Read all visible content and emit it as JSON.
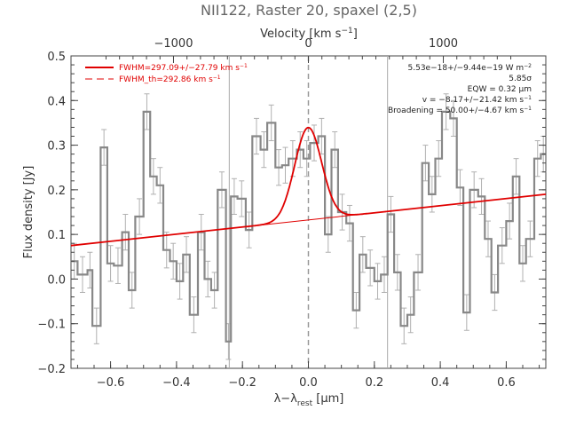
{
  "chart_data": {
    "type": "line",
    "title": "NII122, Raster 20, spaxel (2,5)",
    "xlabel": "λ−λ",
    "xlabel_sub": "rest",
    "xlabel_unit": " [μm]",
    "ylabel": "Flux density [Jy]",
    "top_axis_label": "Velocity [km s",
    "top_axis_label_sup": "−1",
    "top_axis_label_end": "]",
    "xlim": [
      -0.72,
      0.72
    ],
    "ylim": [
      -0.2,
      0.5
    ],
    "x_ticks": [
      -0.6,
      -0.4,
      -0.2,
      0.0,
      0.2,
      0.4,
      0.6
    ],
    "x_tick_labels": [
      "−0.6",
      "−0.4",
      "−0.2",
      "0.0",
      "0.2",
      "0.4",
      "0.6"
    ],
    "y_ticks": [
      -0.2,
      -0.1,
      0.0,
      0.1,
      0.2,
      0.3,
      0.4,
      0.5
    ],
    "y_tick_labels": [
      "−0.2",
      "−0.1",
      "0.0",
      "0.1",
      "0.2",
      "0.3",
      "0.4",
      "0.5"
    ],
    "top_ticks": [
      -1000,
      0,
      1000
    ],
    "top_tick_labels": [
      "−1000",
      "0",
      "1000"
    ],
    "velocity_per_micron": 2444,
    "vertical_lines": [
      -0.24,
      0.0,
      0.24
    ],
    "legend": [
      {
        "label": "FWHM=297.09+/−27.79 km s",
        "sup": "−1",
        "style": "solid"
      },
      {
        "label": "FWHM_th=292.86 km s",
        "sup": "−1",
        "style": "dashed"
      }
    ],
    "annotations": [
      {
        "text": "5.53e−18+/−9.44e−19 W m",
        "sup": "−2"
      },
      {
        "text": "5.85σ",
        "sup": ""
      },
      {
        "text": "EQW = 0.32 μm",
        "sup": ""
      },
      {
        "text": "v = −8.17+/−21.42 km s",
        "sup": "−1"
      },
      {
        "text": "Broadening = 50.00+/−4.67 km s",
        "sup": "−1"
      }
    ],
    "colors": {
      "data": "#888888",
      "errorbar": "#b0b0b0",
      "model": "#e00000",
      "axis": "#444444"
    },
    "series": [
      {
        "bin_edges": [
          -0.72,
          -0.7,
          -0.67,
          -0.655,
          -0.63,
          -0.61,
          -0.59,
          -0.565,
          -0.545,
          -0.525,
          -0.5,
          -0.48,
          -0.46,
          -0.44,
          -0.42,
          -0.4,
          -0.38,
          -0.36,
          -0.335,
          -0.315,
          -0.295,
          -0.275,
          -0.25,
          -0.235,
          -0.215,
          -0.19,
          -0.17,
          -0.145,
          -0.125,
          -0.1,
          -0.08,
          -0.06,
          -0.035,
          -0.015,
          0.005,
          0.03,
          0.05,
          0.07,
          0.09,
          0.115,
          0.135,
          0.155,
          0.175,
          0.2,
          0.22,
          0.24,
          0.26,
          0.28,
          0.3,
          0.32,
          0.345,
          0.365,
          0.385,
          0.405,
          0.43,
          0.45,
          0.47,
          0.49,
          0.515,
          0.535,
          0.555,
          0.575,
          0.6,
          0.62,
          0.64,
          0.66,
          0.685,
          0.705,
          0.72
        ],
        "values": [
          0.04,
          0.01,
          0.02,
          -0.105,
          0.295,
          0.035,
          0.03,
          0.105,
          -0.025,
          0.14,
          0.375,
          0.23,
          0.21,
          0.065,
          0.04,
          -0.005,
          0.055,
          -0.08,
          0.105,
          0.0,
          -0.025,
          0.2,
          -0.14,
          0.185,
          0.18,
          0.11,
          0.32,
          0.29,
          0.35,
          0.25,
          0.255,
          0.27,
          0.29,
          0.27,
          0.305,
          0.32,
          0.1,
          0.29,
          0.15,
          0.125,
          -0.07,
          0.055,
          0.025,
          -0.005,
          0.01,
          0.145,
          0.015,
          -0.105,
          -0.08,
          0.015,
          0.26,
          0.19,
          0.27,
          0.375,
          0.36,
          0.205,
          -0.075,
          0.2,
          0.185,
          0.09,
          -0.03,
          0.075,
          0.13,
          0.23,
          0.035,
          0.09,
          0.27,
          0.28
        ],
        "error": 0.04
      }
    ],
    "model": {
      "name": "Gaussian + linear continuum",
      "continuum_at_xmin": 0.075,
      "continuum_at_xmax": 0.19,
      "peak_height": 0.207,
      "center": -0.0007,
      "sigma": 0.041,
      "fit_range": [
        -0.19,
        0.18
      ]
    }
  }
}
